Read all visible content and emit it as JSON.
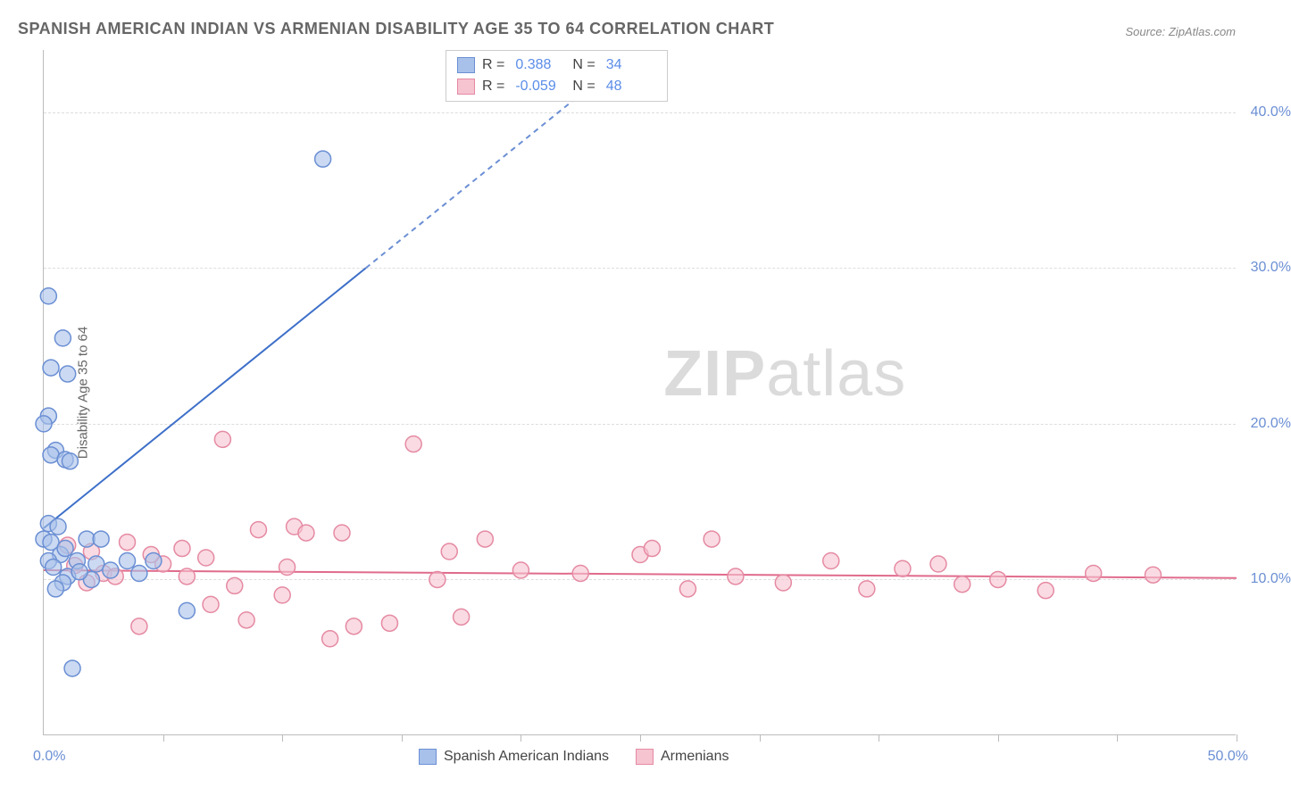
{
  "title": "SPANISH AMERICAN INDIAN VS ARMENIAN DISABILITY AGE 35 TO 64 CORRELATION CHART",
  "source_label": "Source: ZipAtlas.com",
  "y_axis_title": "Disability Age 35 to 64",
  "watermark_zip": "ZIP",
  "watermark_atlas": "atlas",
  "chart": {
    "type": "scatter",
    "background_color": "#ffffff",
    "grid_color": "#dddddd",
    "axis_color": "#bbbbbb",
    "xlim": [
      0,
      50
    ],
    "ylim": [
      0,
      44
    ],
    "x_ticks": [
      0,
      5,
      10,
      15,
      20,
      25,
      30,
      35,
      40,
      45,
      50
    ],
    "y_gridlines": [
      10,
      20,
      30,
      40
    ],
    "y_tick_labels": [
      "10.0%",
      "20.0%",
      "30.0%",
      "40.0%"
    ],
    "x_min_label": "0.0%",
    "x_max_label": "50.0%",
    "marker_radius": 9,
    "marker_stroke_width": 1.5,
    "marker_fill_opacity": 0.25,
    "series": [
      {
        "name": "Spanish American Indians",
        "color_stroke": "#6b8fd4",
        "color_fill": "#a8c1ea",
        "R": "0.388",
        "N": "34",
        "trend": {
          "x1": 0,
          "y1": 13.3,
          "x2": 13.5,
          "y2": 30,
          "dash_x2": 24,
          "dash_y2": 43
        },
        "points": [
          [
            0.2,
            28.2
          ],
          [
            0.8,
            25.5
          ],
          [
            0.3,
            23.6
          ],
          [
            1.0,
            23.2
          ],
          [
            0.2,
            20.5
          ],
          [
            0.0,
            20.0
          ],
          [
            0.5,
            18.3
          ],
          [
            0.3,
            18.0
          ],
          [
            0.9,
            17.7
          ],
          [
            1.1,
            17.6
          ],
          [
            11.7,
            37.0
          ],
          [
            0.2,
            13.6
          ],
          [
            0.6,
            13.4
          ],
          [
            0.0,
            12.6
          ],
          [
            0.3,
            12.4
          ],
          [
            1.8,
            12.6
          ],
          [
            2.4,
            12.6
          ],
          [
            1.4,
            11.2
          ],
          [
            2.2,
            11.0
          ],
          [
            2.8,
            10.6
          ],
          [
            3.5,
            11.2
          ],
          [
            4.6,
            11.2
          ],
          [
            4.0,
            10.4
          ],
          [
            1.0,
            10.2
          ],
          [
            2.0,
            10.0
          ],
          [
            0.8,
            9.8
          ],
          [
            0.5,
            9.4
          ],
          [
            6.0,
            8.0
          ],
          [
            1.2,
            4.3
          ],
          [
            1.5,
            10.5
          ],
          [
            0.7,
            11.6
          ],
          [
            0.2,
            11.2
          ],
          [
            0.9,
            12.0
          ],
          [
            0.4,
            10.8
          ]
        ]
      },
      {
        "name": "Armenians",
        "color_stroke": "#e58aa3",
        "color_fill": "#f6c3d1",
        "R": "-0.059",
        "N": "48",
        "trend": {
          "x1": 0,
          "y1": 10.6,
          "x2": 50,
          "y2": 10.1
        },
        "points": [
          [
            7.5,
            19.0
          ],
          [
            15.5,
            18.7
          ],
          [
            9.0,
            13.2
          ],
          [
            10.5,
            13.4
          ],
          [
            12.5,
            13.0
          ],
          [
            17.0,
            11.8
          ],
          [
            18.5,
            12.6
          ],
          [
            20.0,
            10.6
          ],
          [
            22.5,
            10.4
          ],
          [
            25.0,
            11.6
          ],
          [
            25.5,
            12.0
          ],
          [
            27.0,
            9.4
          ],
          [
            28.0,
            12.6
          ],
          [
            29.0,
            10.2
          ],
          [
            31.0,
            9.8
          ],
          [
            33.0,
            11.2
          ],
          [
            34.5,
            9.4
          ],
          [
            36.0,
            10.7
          ],
          [
            37.5,
            11.0
          ],
          [
            38.5,
            9.7
          ],
          [
            40.0,
            10.0
          ],
          [
            42.0,
            9.3
          ],
          [
            44.0,
            10.4
          ],
          [
            46.5,
            10.3
          ],
          [
            3.5,
            12.4
          ],
          [
            5.0,
            11.0
          ],
          [
            6.0,
            10.2
          ],
          [
            7.0,
            8.4
          ],
          [
            8.0,
            9.6
          ],
          [
            8.5,
            7.4
          ],
          [
            10.0,
            9.0
          ],
          [
            10.2,
            10.8
          ],
          [
            11.0,
            13.0
          ],
          [
            13.0,
            7.0
          ],
          [
            14.5,
            7.2
          ],
          [
            16.5,
            10.0
          ],
          [
            2.0,
            11.8
          ],
          [
            2.5,
            10.4
          ],
          [
            4.0,
            7.0
          ],
          [
            4.5,
            11.6
          ],
          [
            1.0,
            12.2
          ],
          [
            1.3,
            10.9
          ],
          [
            1.8,
            9.8
          ],
          [
            3.0,
            10.2
          ],
          [
            5.8,
            12.0
          ],
          [
            6.8,
            11.4
          ],
          [
            12.0,
            6.2
          ],
          [
            17.5,
            7.6
          ]
        ]
      }
    ]
  },
  "legend_corr": {
    "R_label": "R =",
    "N_label": "N ="
  },
  "legend_bottom": {
    "series1_label": "Spanish American Indians",
    "series2_label": "Armenians"
  }
}
